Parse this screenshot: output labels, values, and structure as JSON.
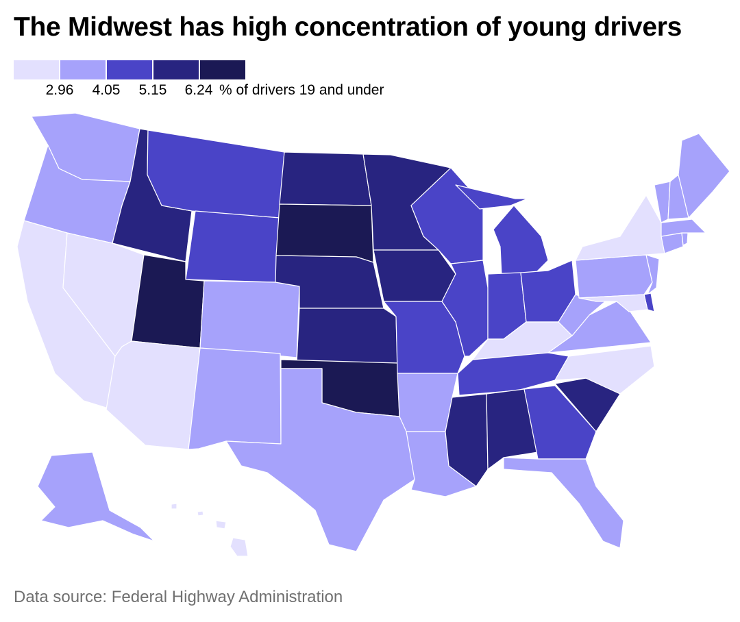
{
  "title": "The Midwest has high concentration of young drivers",
  "legend": {
    "label": "% of drivers 19 and under",
    "ticks": [
      "2.96",
      "4.05",
      "5.15",
      "6.24"
    ],
    "colors": [
      "#e3e0fe",
      "#a6a2fb",
      "#4a44c7",
      "#282480",
      "#1b1954"
    ]
  },
  "states": [
    {
      "name": "Washington",
      "class": 1
    },
    {
      "name": "Oregon",
      "class": 1
    },
    {
      "name": "California",
      "class": 0
    },
    {
      "name": "Nevada",
      "class": 0
    },
    {
      "name": "Idaho",
      "class": 3
    },
    {
      "name": "Montana",
      "class": 2
    },
    {
      "name": "Wyoming",
      "class": 2
    },
    {
      "name": "Utah",
      "class": 4
    },
    {
      "name": "Arizona",
      "class": 0
    },
    {
      "name": "Colorado",
      "class": 1
    },
    {
      "name": "New Mexico",
      "class": 1
    },
    {
      "name": "North Dakota",
      "class": 3
    },
    {
      "name": "South Dakota",
      "class": 4
    },
    {
      "name": "Nebraska",
      "class": 3
    },
    {
      "name": "Kansas",
      "class": 3
    },
    {
      "name": "Oklahoma",
      "class": 4
    },
    {
      "name": "Texas",
      "class": 1
    },
    {
      "name": "Minnesota",
      "class": 3
    },
    {
      "name": "Iowa",
      "class": 3
    },
    {
      "name": "Missouri",
      "class": 2
    },
    {
      "name": "Arkansas",
      "class": 1
    },
    {
      "name": "Louisiana",
      "class": 1
    },
    {
      "name": "Wisconsin",
      "class": 2
    },
    {
      "name": "Illinois",
      "class": 2
    },
    {
      "name": "Michigan",
      "class": 2
    },
    {
      "name": "Indiana",
      "class": 2
    },
    {
      "name": "Ohio",
      "class": 2
    },
    {
      "name": "Kentucky",
      "class": 0
    },
    {
      "name": "Tennessee",
      "class": 2
    },
    {
      "name": "Mississippi",
      "class": 3
    },
    {
      "name": "Alabama",
      "class": 3
    },
    {
      "name": "Georgia",
      "class": 2
    },
    {
      "name": "Florida",
      "class": 1
    },
    {
      "name": "South Carolina",
      "class": 3
    },
    {
      "name": "North Carolina",
      "class": 0
    },
    {
      "name": "Virginia",
      "class": 1
    },
    {
      "name": "West Virginia",
      "class": 1
    },
    {
      "name": "Pennsylvania",
      "class": 1
    },
    {
      "name": "New York",
      "class": 0
    },
    {
      "name": "New Jersey",
      "class": 1
    },
    {
      "name": "Delaware",
      "class": 2
    },
    {
      "name": "Maryland",
      "class": 0
    },
    {
      "name": "Connecticut",
      "class": 1
    },
    {
      "name": "Rhode Island",
      "class": 1
    },
    {
      "name": "Massachusetts",
      "class": 1
    },
    {
      "name": "Vermont",
      "class": 1
    },
    {
      "name": "New Hampshire",
      "class": 1
    },
    {
      "name": "Maine",
      "class": 1
    },
    {
      "name": "Alaska",
      "class": 1
    },
    {
      "name": "Hawaii",
      "class": 0
    }
  ],
  "source": "Data source: Federal Highway Administration"
}
